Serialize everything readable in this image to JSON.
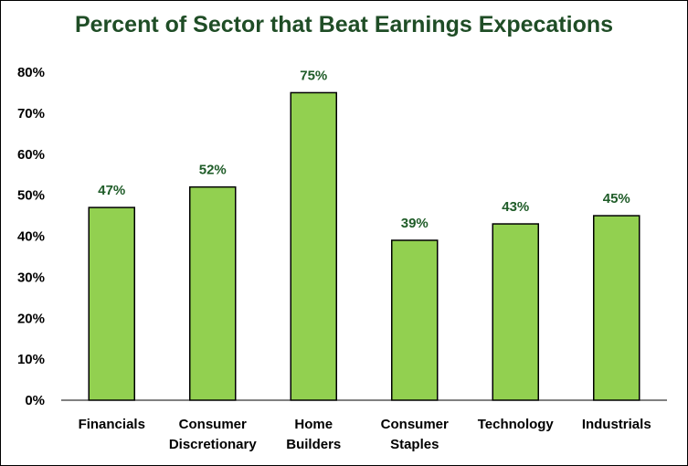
{
  "chart_data": {
    "type": "bar",
    "title": "Percent of Sector that Beat Earnings Expecations",
    "xlabel": "",
    "ylabel": "",
    "categories": [
      [
        "Financials"
      ],
      [
        "Consumer",
        "Discretionary"
      ],
      [
        "Home",
        "Builders"
      ],
      [
        "Consumer",
        "Staples"
      ],
      [
        "Technology"
      ],
      [
        "Industrials"
      ]
    ],
    "values": [
      47,
      52,
      75,
      39,
      43,
      45
    ],
    "data_labels": [
      "47%",
      "52%",
      "75%",
      "39%",
      "43%",
      "45%"
    ],
    "ylim": [
      0,
      80
    ],
    "yticks": [
      0,
      10,
      20,
      30,
      40,
      50,
      60,
      70,
      80
    ],
    "ytick_labels": [
      "0%",
      "10%",
      "20%",
      "30%",
      "40%",
      "50%",
      "60%",
      "70%",
      "80%"
    ],
    "grid": false,
    "legend": "none",
    "colors": {
      "bar_fill": "#92d050",
      "bar_stroke": "#000000",
      "title": "#1f4d26",
      "data_label": "#1f5c28"
    }
  }
}
